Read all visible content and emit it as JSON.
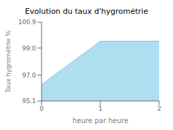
{
  "chart_data": {
    "type": "area",
    "title": "Evolution du taux d'hygrométrie",
    "xlabel": "heure par heure",
    "ylabel": "Taux hygrométrie %",
    "x": [
      0,
      1,
      2
    ],
    "values": [
      96.3,
      99.5,
      99.5
    ],
    "color": "#7cc8e8",
    "xlim": [
      0,
      2
    ],
    "ylim": [
      95.1,
      100.9
    ],
    "xticks": [
      0,
      1,
      2
    ],
    "yticks": [
      95.1,
      {
        "value": 97,
        "label": "97.0"
      },
      {
        "value": 99,
        "label": "99.0"
      },
      100.9
    ]
  }
}
